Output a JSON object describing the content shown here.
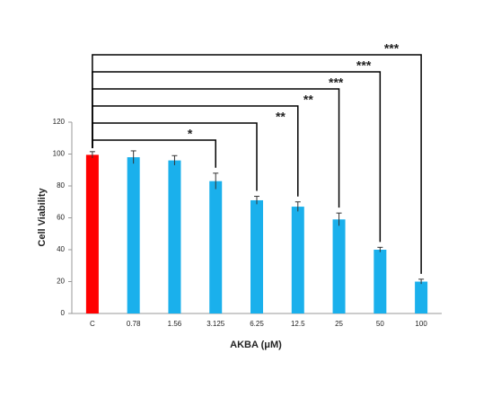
{
  "chart_data": {
    "type": "bar",
    "x_label": "AKBA (μM)",
    "y_label": "Cell Viability",
    "categories": [
      "C",
      "0.78",
      "1.56",
      "3.125",
      "6.25",
      "12.5",
      "25",
      "50",
      "100"
    ],
    "values": [
      99.5,
      98,
      96,
      83,
      71,
      67,
      59,
      40,
      20
    ],
    "errors": [
      2,
      4,
      3,
      5,
      2.5,
      3,
      4,
      1.5,
      1.5
    ],
    "colors": [
      "#ff0000",
      "#1ab0ec",
      "#1ab0ec",
      "#1ab0ec",
      "#1ab0ec",
      "#1ab0ec",
      "#1ab0ec",
      "#1ab0ec",
      "#1ab0ec"
    ],
    "significance": [
      null,
      null,
      null,
      "*",
      "**",
      "**",
      "***",
      "***",
      "***"
    ],
    "ylim": [
      0,
      120
    ],
    "yticks": [
      0,
      20,
      40,
      60,
      80,
      100,
      120
    ],
    "grid": false
  }
}
